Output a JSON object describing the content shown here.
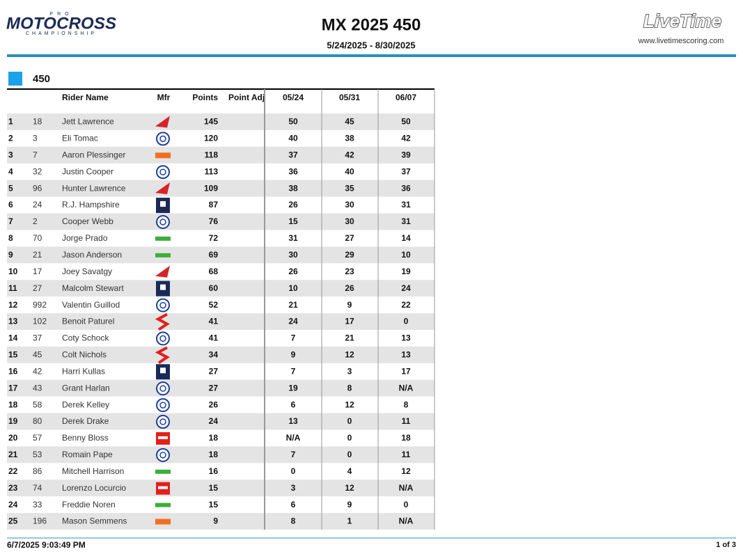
{
  "header": {
    "logo_left": {
      "pro": "PRO",
      "name": "MOTOCROSS",
      "sub": "CHAMPIONSHIP"
    },
    "title": "MX 2025 450",
    "dates": "5/24/2025 - 8/30/2025",
    "logo_right": {
      "name": "LiveTime",
      "url": "www.livetimescoring.com"
    }
  },
  "section": "450",
  "table": {
    "columns": [
      "Rider Name",
      "Mfr",
      "Points",
      "Point Adj",
      "05/24",
      "05/31",
      "06/07"
    ],
    "rows": [
      [
        1,
        18,
        "Jett Lawrence",
        145,
        50,
        45,
        50
      ],
      [
        2,
        3,
        "Eli Tomac",
        120,
        40,
        38,
        42
      ],
      [
        3,
        7,
        "Aaron Plessinger",
        118,
        37,
        42,
        39
      ],
      [
        4,
        32,
        "Justin Cooper",
        113,
        36,
        40,
        37
      ],
      [
        5,
        96,
        "Hunter Lawrence",
        109,
        38,
        35,
        36
      ],
      [
        6,
        24,
        "R.J. Hampshire",
        87,
        26,
        30,
        31
      ],
      [
        7,
        2,
        "Cooper Webb",
        76,
        15,
        30,
        31
      ],
      [
        8,
        70,
        "Jorge Prado",
        72,
        31,
        27,
        14
      ],
      [
        9,
        21,
        "Jason Anderson",
        69,
        30,
        29,
        10
      ],
      [
        10,
        17,
        "Joey Savatgy",
        68,
        26,
        23,
        19
      ],
      [
        11,
        27,
        "Malcolm Stewart",
        60,
        10,
        26,
        24
      ],
      [
        12,
        992,
        "Valentin Guillod",
        52,
        21,
        9,
        22
      ],
      [
        13,
        102,
        "Benoit Paturel",
        41,
        24,
        17,
        0
      ],
      [
        14,
        37,
        "Coty Schock",
        41,
        7,
        21,
        13
      ],
      [
        15,
        45,
        "Colt Nichols",
        34,
        9,
        12,
        13
      ],
      [
        16,
        42,
        "Harri Kullas",
        27,
        7,
        3,
        17
      ],
      [
        17,
        43,
        "Grant Harlan",
        27,
        19,
        8,
        "N/A"
      ],
      [
        18,
        58,
        "Derek Kelley",
        26,
        6,
        12,
        8
      ],
      [
        19,
        80,
        "Derek Drake",
        24,
        13,
        0,
        11
      ],
      [
        20,
        57,
        "Benny Bloss",
        18,
        "N/A",
        0,
        18
      ],
      [
        21,
        53,
        "Romain Pape",
        18,
        7,
        0,
        11
      ],
      [
        22,
        86,
        "Mitchell Harrison",
        16,
        0,
        4,
        12
      ],
      [
        23,
        74,
        "Lorenzo Locurcio",
        15,
        3,
        12,
        "N/A"
      ],
      [
        24,
        33,
        "Freddie Noren",
        15,
        6,
        9,
        0
      ],
      [
        25,
        196,
        "Mason Semmens",
        9,
        8,
        1,
        "N/A"
      ]
    ]
  },
  "footer": {
    "timestamp": "6/7/2025 9:03:49 PM",
    "page": "1 of 3"
  }
}
